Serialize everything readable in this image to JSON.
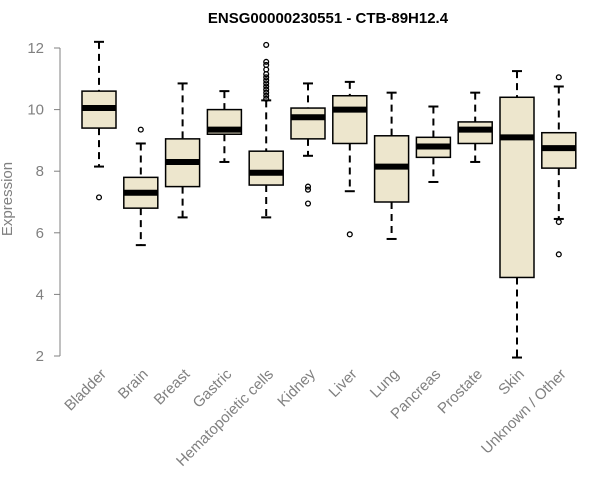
{
  "chart_data": {
    "type": "boxplot",
    "title": "ENSG00000230551 - CTB-89H12.4",
    "xlabel": "",
    "ylabel": "Expression",
    "ylim": [
      2,
      12
    ],
    "yticks": [
      2,
      4,
      6,
      8,
      10,
      12
    ],
    "box_fill": "#ede6cd",
    "axis_color": "#808080",
    "categories": [
      "Bladder",
      "Brain",
      "Breast",
      "Gastric",
      "Hematopoietic cells",
      "Kidney",
      "Liver",
      "Lung",
      "Pancreas",
      "Prostate",
      "Skin",
      "Unknown / Other"
    ],
    "boxes": [
      {
        "name": "Bladder",
        "whisker_low": 8.15,
        "q1": 9.4,
        "median": 10.05,
        "q3": 10.6,
        "whisker_high": 12.2,
        "outliers": [
          7.15
        ]
      },
      {
        "name": "Brain",
        "whisker_low": 5.6,
        "q1": 6.8,
        "median": 7.3,
        "q3": 7.8,
        "whisker_high": 8.9,
        "outliers": [
          9.35
        ]
      },
      {
        "name": "Breast",
        "whisker_low": 6.5,
        "q1": 7.5,
        "median": 8.3,
        "q3": 9.05,
        "whisker_high": 10.85,
        "outliers": []
      },
      {
        "name": "Gastric",
        "whisker_low": 8.3,
        "q1": 9.2,
        "median": 9.35,
        "q3": 10.0,
        "whisker_high": 10.6,
        "outliers": []
      },
      {
        "name": "Hematopoietic cells",
        "whisker_low": 6.5,
        "q1": 7.55,
        "median": 7.95,
        "q3": 8.65,
        "whisker_high": 10.3,
        "outliers": [
          10.35,
          10.45,
          10.55,
          10.65,
          10.75,
          10.85,
          10.95,
          11.05,
          11.15,
          11.3,
          11.45,
          11.55,
          12.1
        ]
      },
      {
        "name": "Kidney",
        "whisker_low": 8.5,
        "q1": 9.05,
        "median": 9.75,
        "q3": 10.05,
        "whisker_high": 10.85,
        "outliers": [
          7.4,
          7.5,
          6.95
        ]
      },
      {
        "name": "Liver",
        "whisker_low": 7.35,
        "q1": 8.9,
        "median": 10.0,
        "q3": 10.45,
        "whisker_high": 10.9,
        "outliers": [
          5.95
        ]
      },
      {
        "name": "Lung",
        "whisker_low": 5.8,
        "q1": 7.0,
        "median": 8.15,
        "q3": 9.15,
        "whisker_high": 10.55,
        "outliers": []
      },
      {
        "name": "Pancreas",
        "whisker_low": 7.65,
        "q1": 8.45,
        "median": 8.8,
        "q3": 9.1,
        "whisker_high": 10.1,
        "outliers": []
      },
      {
        "name": "Prostate",
        "whisker_low": 8.3,
        "q1": 8.9,
        "median": 9.35,
        "q3": 9.6,
        "whisker_high": 10.55,
        "outliers": []
      },
      {
        "name": "Skin",
        "whisker_low": 1.95,
        "q1": 4.55,
        "median": 9.1,
        "q3": 10.4,
        "whisker_high": 11.25,
        "outliers": []
      },
      {
        "name": "Unknown / Other",
        "whisker_low": 6.45,
        "q1": 8.1,
        "median": 8.75,
        "q3": 9.25,
        "whisker_high": 10.75,
        "outliers": [
          11.05,
          6.35,
          5.3
        ]
      }
    ]
  }
}
